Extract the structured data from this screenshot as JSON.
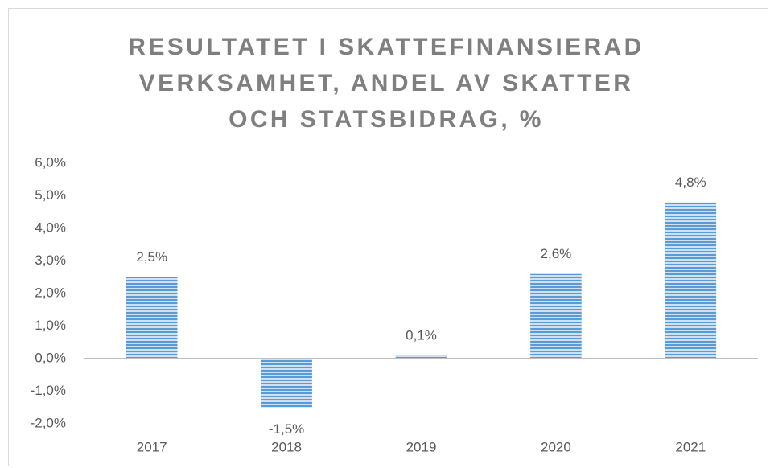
{
  "chart_data": {
    "type": "bar",
    "title": "RESULTATET I SKATTEFINANSIERAD VERKSAMHET, ANDEL AV SKATTER OCH STATSBIDRAG, %",
    "categories": [
      "2017",
      "2018",
      "2019",
      "2020",
      "2021"
    ],
    "values": [
      2.5,
      -1.5,
      0.1,
      2.6,
      4.8
    ],
    "value_labels": [
      "2,5%",
      "-1,5%",
      "0,1%",
      "2,6%",
      "4,8%"
    ],
    "color": "#5b9bd5",
    "ylim": [
      -2,
      6
    ],
    "yticks": [
      {
        "value": -2,
        "label": "-2,0%"
      },
      {
        "value": -1,
        "label": "-1,0%"
      },
      {
        "value": 0,
        "label": "0,0%"
      },
      {
        "value": 1,
        "label": "1,0%"
      },
      {
        "value": 2,
        "label": "2,0%"
      },
      {
        "value": 3,
        "label": "3,0%"
      },
      {
        "value": 4,
        "label": "4,0%"
      },
      {
        "value": 5,
        "label": "5,0%"
      },
      {
        "value": 6,
        "label": "6,0%"
      }
    ],
    "grid": false
  }
}
